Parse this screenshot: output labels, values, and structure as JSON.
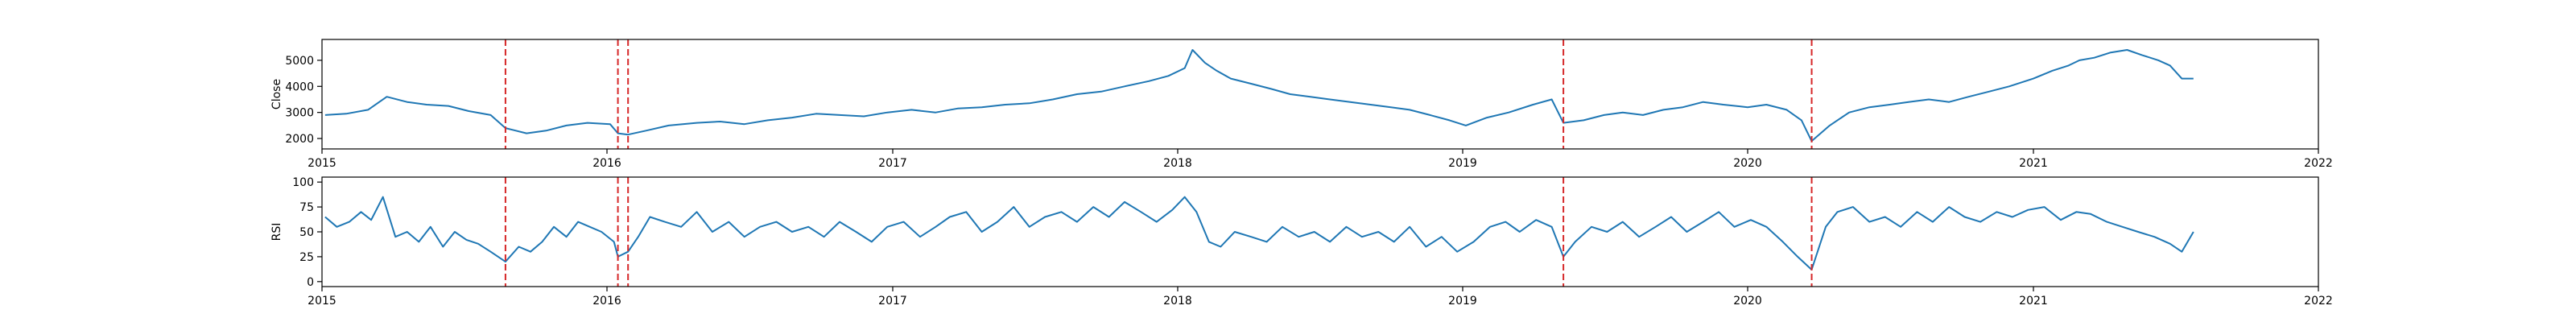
{
  "chart_data": [
    {
      "type": "line",
      "ylabel": "Close",
      "xlim": [
        "2015-01-01",
        "2022-01-01"
      ],
      "ylim": [
        1600,
        5800
      ],
      "x_ticks": [
        {
          "value": "2015-01-01",
          "label": "2015"
        },
        {
          "value": "2016-01-01",
          "label": "2016"
        },
        {
          "value": "2017-01-01",
          "label": "2017"
        },
        {
          "value": "2018-01-01",
          "label": "2018"
        },
        {
          "value": "2019-01-01",
          "label": "2019"
        },
        {
          "value": "2020-01-01",
          "label": "2020"
        },
        {
          "value": "2021-01-01",
          "label": "2021"
        },
        {
          "value": "2022-01-01",
          "label": "2022"
        }
      ],
      "y_ticks": [
        2000,
        3000,
        4000,
        5000
      ],
      "grid": false,
      "line_color": "#1f77b4",
      "vline_color": "#d62728",
      "vlines": [
        "2015-08-24",
        "2016-01-15",
        "2016-01-28",
        "2019-05-10",
        "2020-03-23"
      ],
      "series": [
        {
          "x": [
            "2015-01-05",
            "2015-02-01",
            "2015-03-01",
            "2015-03-25",
            "2015-04-20",
            "2015-05-15",
            "2015-06-12",
            "2015-07-08",
            "2015-08-05",
            "2015-08-24",
            "2015-09-20",
            "2015-10-15",
            "2015-11-10",
            "2015-12-07",
            "2016-01-05",
            "2016-01-15",
            "2016-01-28",
            "2016-02-20",
            "2016-03-20",
            "2016-04-25",
            "2016-05-25",
            "2016-06-25",
            "2016-07-25",
            "2016-08-25",
            "2016-09-25",
            "2016-10-25",
            "2016-11-25",
            "2016-12-25",
            "2017-01-25",
            "2017-02-25",
            "2017-03-25",
            "2017-04-25",
            "2017-05-25",
            "2017-06-25",
            "2017-07-25",
            "2017-08-25",
            "2017-09-25",
            "2017-10-25",
            "2017-11-25",
            "2017-12-20",
            "2018-01-10",
            "2018-01-20",
            "2018-02-05",
            "2018-02-20",
            "2018-03-10",
            "2018-04-05",
            "2018-05-01",
            "2018-05-25",
            "2018-06-20",
            "2018-07-15",
            "2018-08-10",
            "2018-09-05",
            "2018-10-01",
            "2018-10-25",
            "2018-11-20",
            "2018-12-15",
            "2019-01-05",
            "2019-02-01",
            "2019-03-01",
            "2019-04-01",
            "2019-04-25",
            "2019-05-10",
            "2019-06-05",
            "2019-07-01",
            "2019-07-25",
            "2019-08-20",
            "2019-09-15",
            "2019-10-10",
            "2019-11-05",
            "2019-12-01",
            "2020-01-01",
            "2020-01-25",
            "2020-02-20",
            "2020-03-10",
            "2020-03-23",
            "2020-04-15",
            "2020-05-10",
            "2020-06-05",
            "2020-07-01",
            "2020-07-25",
            "2020-08-20",
            "2020-09-15",
            "2020-10-10",
            "2020-11-05",
            "2020-12-01",
            "2021-01-01",
            "2021-01-25",
            "2021-02-15",
            "2021-03-01",
            "2021-03-20",
            "2021-04-10",
            "2021-05-01",
            "2021-05-20",
            "2021-06-10",
            "2021-06-25",
            "2021-07-10",
            "2021-07-25"
          ],
          "y": [
            2900,
            2950,
            3100,
            3600,
            3400,
            3300,
            3250,
            3050,
            2900,
            2400,
            2200,
            2300,
            2500,
            2600,
            2550,
            2200,
            2150,
            2300,
            2500,
            2600,
            2650,
            2550,
            2700,
            2800,
            2950,
            2900,
            2850,
            3000,
            3100,
            3000,
            3150,
            3200,
            3300,
            3350,
            3500,
            3700,
            3800,
            4000,
            4200,
            4400,
            4700,
            5400,
            4900,
            4600,
            4300,
            4100,
            3900,
            3700,
            3600,
            3500,
            3400,
            3300,
            3200,
            3100,
            2900,
            2700,
            2500,
            2800,
            3000,
            3300,
            3500,
            2600,
            2700,
            2900,
            3000,
            2900,
            3100,
            3200,
            3400,
            3300,
            3200,
            3300,
            3100,
            2700,
            1900,
            2500,
            3000,
            3200,
            3300,
            3400,
            3500,
            3400,
            3600,
            3800,
            4000,
            4300,
            4600,
            4800,
            5000,
            5100,
            5300,
            5400,
            5200,
            5000,
            4800,
            4300,
            4300
          ]
        }
      ]
    },
    {
      "type": "line",
      "ylabel": "RSI",
      "xlim": [
        "2015-01-01",
        "2022-01-01"
      ],
      "ylim": [
        -5,
        105
      ],
      "x_ticks": [
        {
          "value": "2015-01-01",
          "label": "2015"
        },
        {
          "value": "2016-01-01",
          "label": "2016"
        },
        {
          "value": "2017-01-01",
          "label": "2017"
        },
        {
          "value": "2018-01-01",
          "label": "2018"
        },
        {
          "value": "2019-01-01",
          "label": "2019"
        },
        {
          "value": "2020-01-01",
          "label": "2020"
        },
        {
          "value": "2021-01-01",
          "label": "2021"
        },
        {
          "value": "2022-01-01",
          "label": "2022"
        }
      ],
      "y_ticks": [
        0,
        25,
        50,
        75,
        100
      ],
      "grid": false,
      "line_color": "#1f77b4",
      "vline_color": "#d62728",
      "vlines": [
        "2015-08-24",
        "2016-01-15",
        "2016-01-28",
        "2019-05-10",
        "2020-03-23"
      ],
      "series": [
        {
          "x": [
            "2015-01-05",
            "2015-01-20",
            "2015-02-05",
            "2015-02-20",
            "2015-03-05",
            "2015-03-20",
            "2015-04-05",
            "2015-04-20",
            "2015-05-05",
            "2015-05-20",
            "2015-06-05",
            "2015-06-20",
            "2015-07-05",
            "2015-07-20",
            "2015-08-05",
            "2015-08-24",
            "2015-09-10",
            "2015-09-25",
            "2015-10-10",
            "2015-10-25",
            "2015-11-10",
            "2015-11-25",
            "2015-12-10",
            "2015-12-25",
            "2016-01-10",
            "2016-01-15",
            "2016-01-28",
            "2016-02-10",
            "2016-02-25",
            "2016-03-15",
            "2016-04-05",
            "2016-04-25",
            "2016-05-15",
            "2016-06-05",
            "2016-06-25",
            "2016-07-15",
            "2016-08-05",
            "2016-08-25",
            "2016-09-15",
            "2016-10-05",
            "2016-10-25",
            "2016-11-15",
            "2016-12-05",
            "2016-12-25",
            "2017-01-15",
            "2017-02-05",
            "2017-02-25",
            "2017-03-15",
            "2017-04-05",
            "2017-04-25",
            "2017-05-15",
            "2017-06-05",
            "2017-06-25",
            "2017-07-15",
            "2017-08-05",
            "2017-08-25",
            "2017-09-15",
            "2017-10-05",
            "2017-10-25",
            "2017-11-15",
            "2017-12-05",
            "2017-12-25",
            "2018-01-10",
            "2018-01-25",
            "2018-02-10",
            "2018-02-25",
            "2018-03-15",
            "2018-04-05",
            "2018-04-25",
            "2018-05-15",
            "2018-06-05",
            "2018-06-25",
            "2018-07-15",
            "2018-08-05",
            "2018-08-25",
            "2018-09-15",
            "2018-10-05",
            "2018-10-25",
            "2018-11-15",
            "2018-12-05",
            "2018-12-25",
            "2019-01-15",
            "2019-02-05",
            "2019-02-25",
            "2019-03-15",
            "2019-04-05",
            "2019-04-25",
            "2019-05-10",
            "2019-05-25",
            "2019-06-15",
            "2019-07-05",
            "2019-07-25",
            "2019-08-15",
            "2019-09-05",
            "2019-09-25",
            "2019-10-15",
            "2019-11-05",
            "2019-11-25",
            "2019-12-15",
            "2020-01-05",
            "2020-01-25",
            "2020-02-15",
            "2020-03-05",
            "2020-03-23",
            "2020-04-10",
            "2020-04-25",
            "2020-05-15",
            "2020-06-05",
            "2020-06-25",
            "2020-07-15",
            "2020-08-05",
            "2020-08-25",
            "2020-09-15",
            "2020-10-05",
            "2020-10-25",
            "2020-11-15",
            "2020-12-05",
            "2020-12-25",
            "2021-01-15",
            "2021-02-05",
            "2021-02-25",
            "2021-03-15",
            "2021-04-05",
            "2021-04-25",
            "2021-05-15",
            "2021-06-05",
            "2021-06-25",
            "2021-07-10",
            "2021-07-25"
          ],
          "y": [
            65,
            55,
            60,
            70,
            62,
            85,
            45,
            50,
            40,
            55,
            35,
            50,
            42,
            38,
            30,
            20,
            35,
            30,
            40,
            55,
            45,
            60,
            55,
            50,
            40,
            25,
            30,
            45,
            65,
            60,
            55,
            70,
            50,
            60,
            45,
            55,
            60,
            50,
            55,
            45,
            60,
            50,
            40,
            55,
            60,
            45,
            55,
            65,
            70,
            50,
            60,
            75,
            55,
            65,
            70,
            60,
            75,
            65,
            80,
            70,
            60,
            72,
            85,
            70,
            40,
            35,
            50,
            45,
            40,
            55,
            45,
            50,
            40,
            55,
            45,
            50,
            40,
            55,
            35,
            45,
            30,
            40,
            55,
            60,
            50,
            62,
            55,
            25,
            40,
            55,
            50,
            60,
            45,
            55,
            65,
            50,
            60,
            70,
            55,
            62,
            55,
            40,
            25,
            12,
            55,
            70,
            75,
            60,
            65,
            55,
            70,
            60,
            75,
            65,
            60,
            70,
            65,
            72,
            75,
            62,
            70,
            68,
            60,
            55,
            50,
            45,
            38,
            30,
            50
          ]
        }
      ]
    }
  ]
}
